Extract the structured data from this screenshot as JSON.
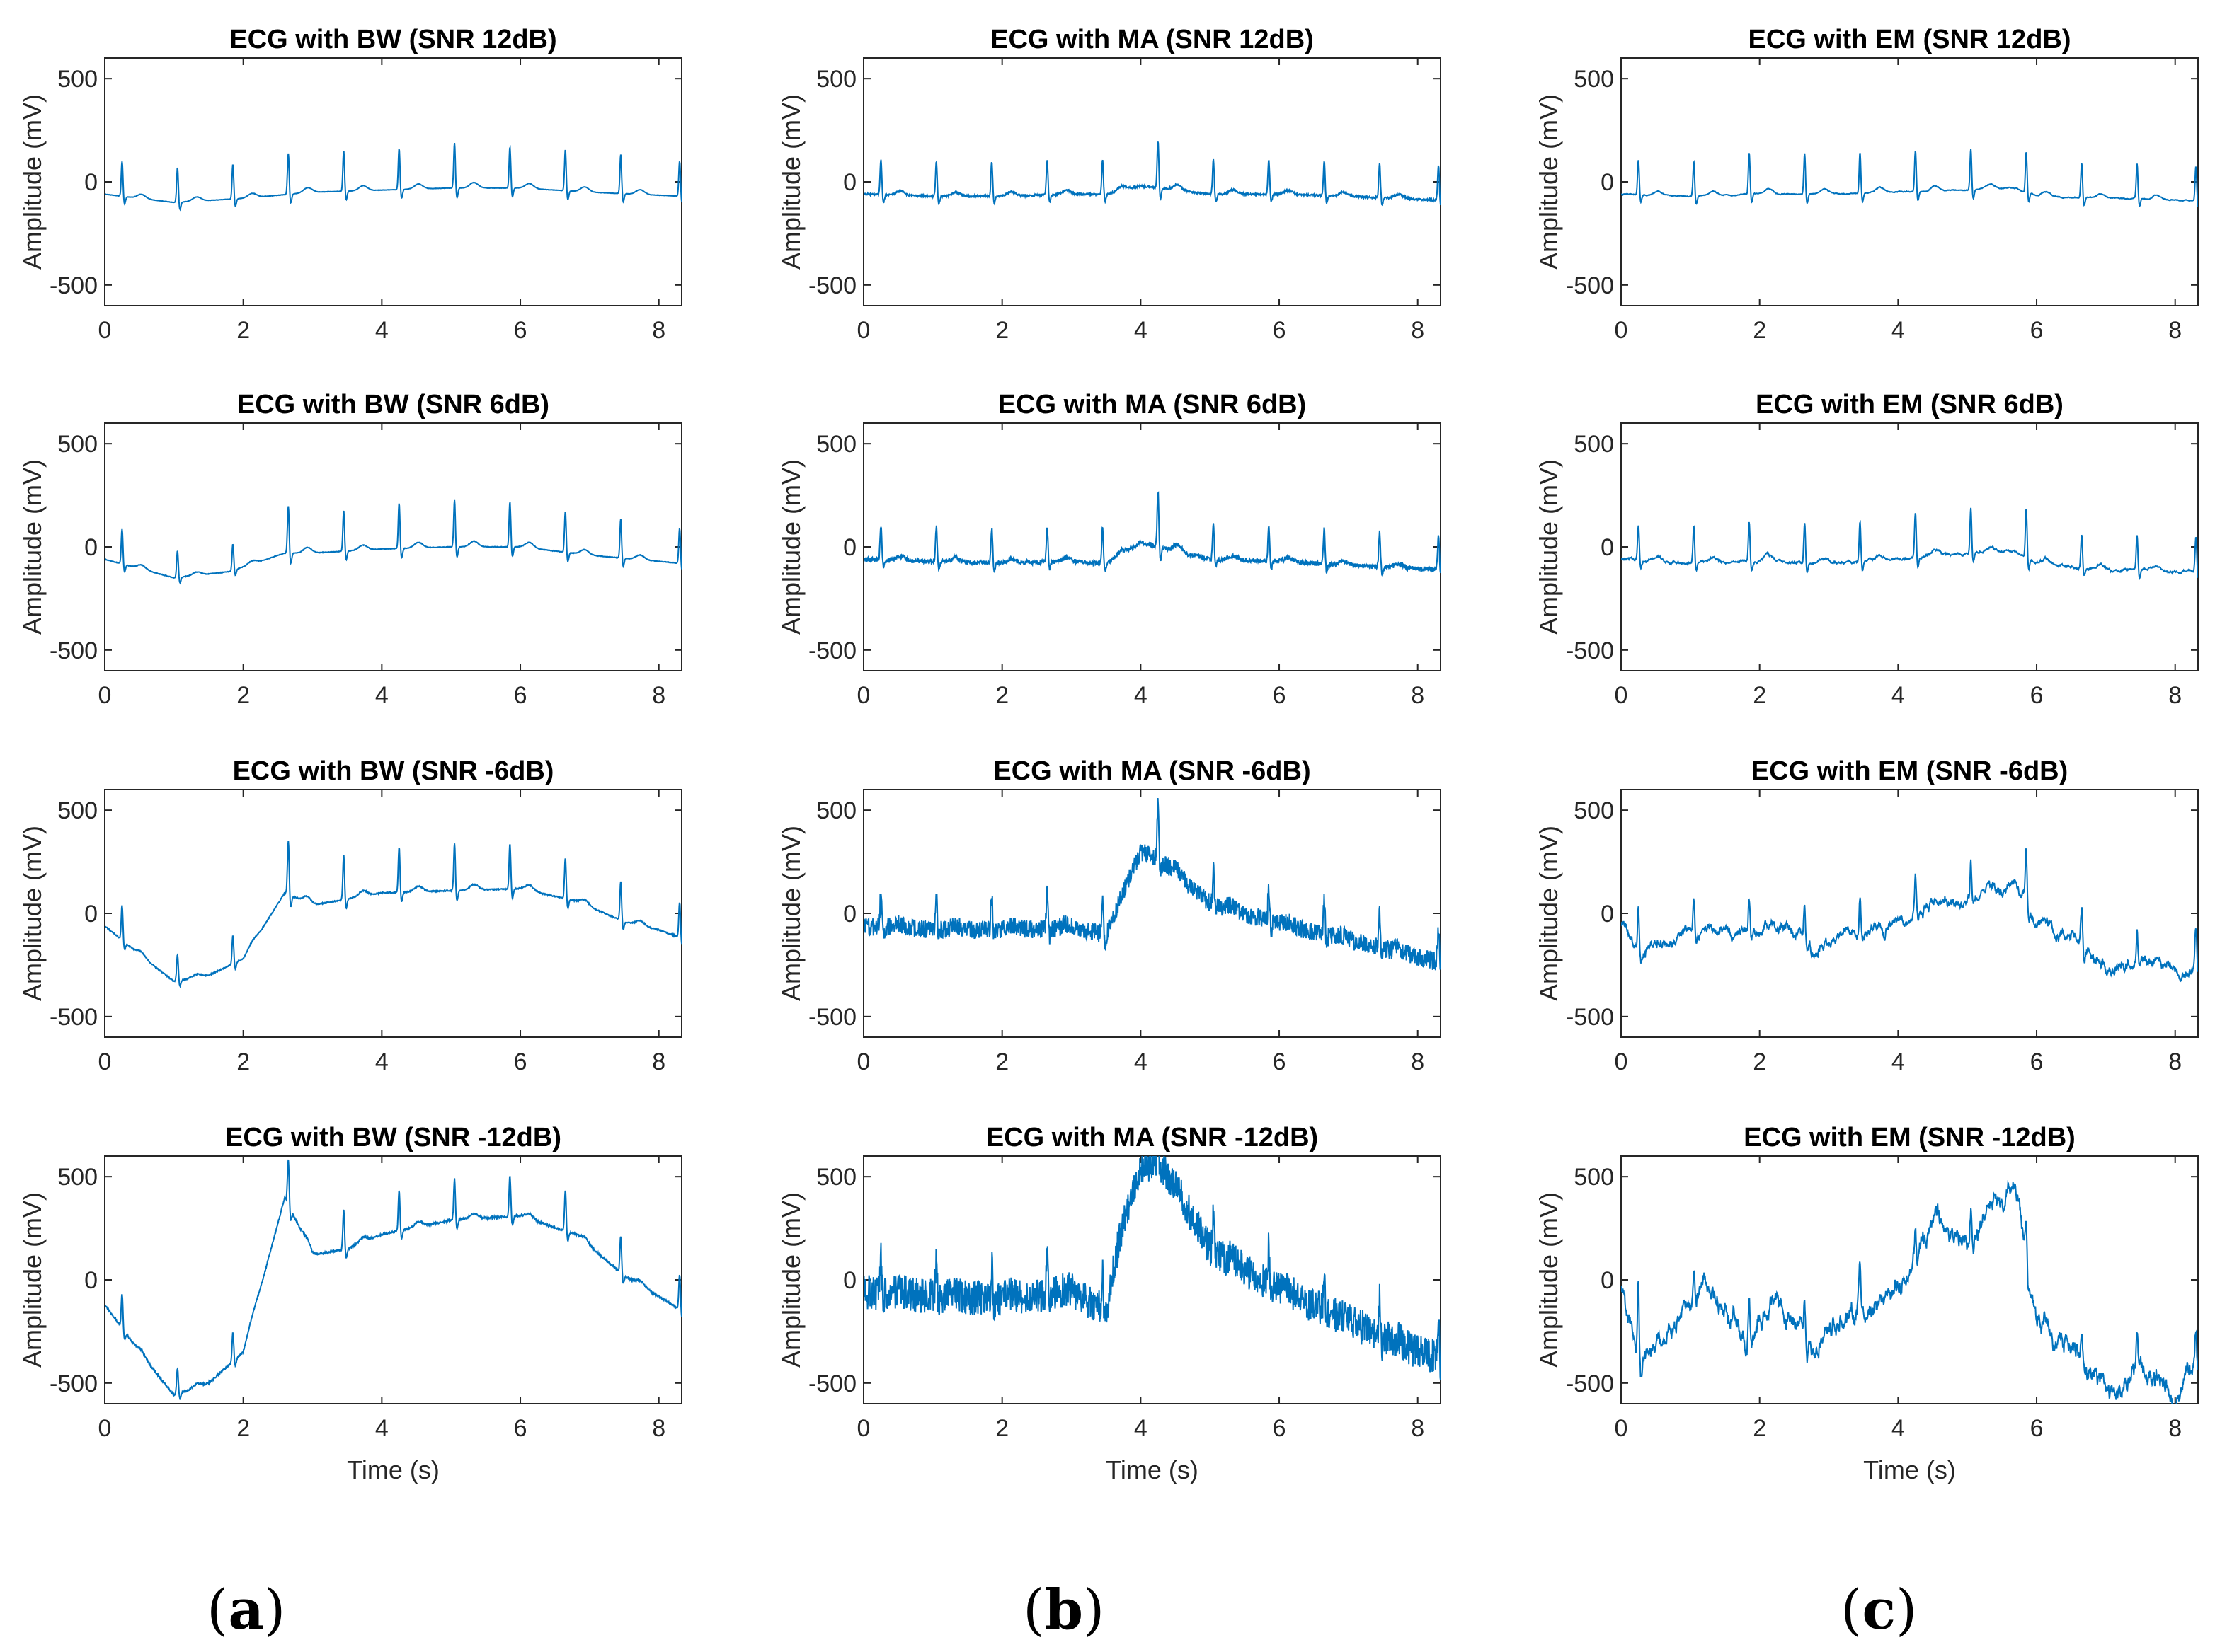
{
  "colors": {
    "line": "#0072bd",
    "axis": "#262626"
  },
  "panel_labels": [
    "a",
    "b",
    "c"
  ],
  "chart_data": [
    {
      "type": "line",
      "title": "ECG with BW (SNR 12dB)",
      "xlabel": "",
      "ylabel": "Amplitude (mV)",
      "xlim": [
        0,
        8.33
      ],
      "ylim": [
        -600,
        600
      ],
      "xticks": [
        "0",
        "2",
        "4",
        "6",
        "8"
      ],
      "yticks": [
        "500",
        "0",
        "-500"
      ],
      "noise": "bw",
      "level": 0.08,
      "baseline_points": [
        [
          0,
          -60
        ],
        [
          1,
          -100
        ],
        [
          2,
          -80
        ],
        [
          3,
          -50
        ],
        [
          4,
          -40
        ],
        [
          5,
          -30
        ],
        [
          6,
          -30
        ],
        [
          7,
          -50
        ],
        [
          8.33,
          -70
        ]
      ],
      "r_peak_times": [
        0.25,
        1.05,
        1.85,
        2.65,
        3.45,
        4.25,
        5.05,
        5.85,
        6.65,
        7.45,
        8.3
      ],
      "r_peak_heights": [
        170,
        170,
        170,
        200,
        200,
        200,
        220,
        200,
        200,
        190,
        170
      ]
    },
    {
      "type": "line",
      "title": "ECG with MA (SNR 12dB)",
      "xlabel": "",
      "ylabel": "Amplitude (mV)",
      "xlim": [
        0,
        8.33
      ],
      "ylim": [
        -600,
        600
      ],
      "xticks": [
        "0",
        "2",
        "4",
        "6",
        "8"
      ],
      "yticks": [
        "500",
        "0",
        "-500"
      ],
      "noise": "ma",
      "level": 0.1,
      "baseline_points": [
        [
          0,
          -60
        ],
        [
          1,
          -70
        ],
        [
          2,
          -70
        ],
        [
          3,
          -60
        ],
        [
          3.5,
          -60
        ],
        [
          4,
          -20
        ],
        [
          4.5,
          -40
        ],
        [
          5,
          -60
        ],
        [
          6,
          -60
        ],
        [
          7,
          -70
        ],
        [
          8.33,
          -90
        ]
      ],
      "r_peak_times": [
        0.25,
        1.05,
        1.85,
        2.65,
        3.45,
        4.25,
        5.05,
        5.85,
        6.65,
        7.45,
        8.3
      ],
      "r_peak_heights": [
        170,
        170,
        170,
        170,
        170,
        230,
        170,
        170,
        170,
        170,
        170
      ]
    },
    {
      "type": "line",
      "title": "ECG with EM (SNR 12dB)",
      "xlabel": "",
      "ylabel": "Amplitude (mV)",
      "xlim": [
        0,
        8.33
      ],
      "ylim": [
        -600,
        600
      ],
      "xticks": [
        "0",
        "2",
        "4",
        "6",
        "8"
      ],
      "yticks": [
        "500",
        "0",
        "-500"
      ],
      "noise": "em",
      "level": 0.1,
      "baseline_points": [
        [
          0,
          -60
        ],
        [
          1,
          -70
        ],
        [
          2,
          -60
        ],
        [
          3,
          -60
        ],
        [
          4,
          -50
        ],
        [
          5,
          -40
        ],
        [
          5.7,
          -30
        ],
        [
          6,
          -70
        ],
        [
          7,
          -80
        ],
        [
          8.33,
          -90
        ]
      ],
      "r_peak_times": [
        0.25,
        1.05,
        1.85,
        2.65,
        3.45,
        4.25,
        5.05,
        5.85,
        6.65,
        7.45,
        8.3
      ],
      "r_peak_heights": [
        170,
        170,
        200,
        200,
        200,
        200,
        200,
        200,
        170,
        170,
        170
      ]
    },
    {
      "type": "line",
      "title": "ECG with BW (SNR 6dB)",
      "xlabel": "",
      "ylabel": "Amplitude (mV)",
      "xlim": [
        0,
        8.33
      ],
      "ylim": [
        -600,
        600
      ],
      "xticks": [
        "0",
        "2",
        "4",
        "6",
        "8"
      ],
      "yticks": [
        "500",
        "0",
        "-500"
      ],
      "noise": "bw",
      "level": 0.15,
      "baseline_points": [
        [
          0,
          -60
        ],
        [
          1,
          -150
        ],
        [
          1.8,
          -120
        ],
        [
          2.6,
          -30
        ],
        [
          3,
          -30
        ],
        [
          4,
          -10
        ],
        [
          5,
          0
        ],
        [
          6,
          0
        ],
        [
          7,
          -40
        ],
        [
          8.33,
          -80
        ]
      ],
      "r_peak_times": [
        0.25,
        1.05,
        1.85,
        2.65,
        3.45,
        4.25,
        5.05,
        5.85,
        6.65,
        7.45,
        8.3
      ],
      "r_peak_heights": [
        170,
        130,
        130,
        230,
        200,
        220,
        230,
        220,
        200,
        190,
        170
      ]
    },
    {
      "type": "line",
      "title": "ECG with MA (SNR 6dB)",
      "xlabel": "",
      "ylabel": "Amplitude (mV)",
      "xlim": [
        0,
        8.33
      ],
      "ylim": [
        -600,
        600
      ],
      "xticks": [
        "0",
        "2",
        "4",
        "6",
        "8"
      ],
      "yticks": [
        "500",
        "0",
        "-500"
      ],
      "noise": "ma",
      "level": 0.25,
      "baseline_points": [
        [
          0,
          -60
        ],
        [
          1,
          -70
        ],
        [
          2,
          -80
        ],
        [
          3,
          -70
        ],
        [
          3.5,
          -80
        ],
        [
          4,
          20
        ],
        [
          4.5,
          -20
        ],
        [
          5,
          -60
        ],
        [
          6,
          -70
        ],
        [
          7,
          -90
        ],
        [
          8.33,
          -110
        ]
      ],
      "r_peak_times": [
        0.25,
        1.05,
        1.85,
        2.65,
        3.45,
        4.25,
        5.05,
        5.85,
        6.65,
        7.45,
        8.3
      ],
      "r_peak_heights": [
        170,
        170,
        170,
        170,
        170,
        270,
        170,
        170,
        170,
        170,
        170
      ]
    },
    {
      "type": "line",
      "title": "ECG with EM (SNR 6dB)",
      "xlabel": "",
      "ylabel": "Amplitude (mV)",
      "xlim": [
        0,
        8.33
      ],
      "ylim": [
        -600,
        600
      ],
      "xticks": [
        "0",
        "2",
        "4",
        "6",
        "8"
      ],
      "yticks": [
        "500",
        "0",
        "-500"
      ],
      "noise": "em",
      "level": 0.25,
      "baseline_points": [
        [
          0,
          -60
        ],
        [
          1,
          -80
        ],
        [
          2,
          -70
        ],
        [
          3,
          -80
        ],
        [
          4,
          -60
        ],
        [
          5,
          -30
        ],
        [
          5.7,
          -20
        ],
        [
          6,
          -80
        ],
        [
          7,
          -110
        ],
        [
          8.33,
          -120
        ]
      ],
      "r_peak_times": [
        0.25,
        1.05,
        1.85,
        2.65,
        3.45,
        4.25,
        5.05,
        5.85,
        6.65,
        7.45,
        8.3
      ],
      "r_peak_heights": [
        170,
        180,
        200,
        200,
        200,
        220,
        220,
        240,
        170,
        170,
        170
      ]
    },
    {
      "type": "line",
      "title": "ECG with BW (SNR -6dB)",
      "xlabel": "",
      "ylabel": "Amplitude (mV)",
      "xlim": [
        0,
        8.33
      ],
      "ylim": [
        -600,
        600
      ],
      "xticks": [
        "0",
        "2",
        "4",
        "6",
        "8"
      ],
      "yticks": [
        "500",
        "0",
        "-500"
      ],
      "noise": "bw",
      "level": 0.3,
      "baseline_points": [
        [
          0,
          -60
        ],
        [
          0.5,
          -200
        ],
        [
          1,
          -330
        ],
        [
          1.5,
          -300
        ],
        [
          2,
          -220
        ],
        [
          2.6,
          100
        ],
        [
          3,
          40
        ],
        [
          4,
          100
        ],
        [
          5,
          110
        ],
        [
          6,
          120
        ],
        [
          6.8,
          60
        ],
        [
          7.5,
          -40
        ],
        [
          8,
          -80
        ],
        [
          8.33,
          -120
        ]
      ],
      "r_peak_times": [
        0.25,
        1.05,
        1.85,
        2.65,
        3.45,
        4.25,
        5.05,
        5.85,
        6.65,
        7.45,
        8.3
      ],
      "r_peak_heights": [
        170,
        130,
        140,
        260,
        220,
        220,
        230,
        220,
        200,
        190,
        170
      ]
    },
    {
      "type": "line",
      "title": "ECG with MA (SNR -6dB)",
      "xlabel": "",
      "ylabel": "Amplitude (mV)",
      "xlim": [
        0,
        8.33
      ],
      "ylim": [
        -600,
        600
      ],
      "xticks": [
        "0",
        "2",
        "4",
        "6",
        "8"
      ],
      "yticks": [
        "500",
        "0",
        "-500"
      ],
      "noise": "ma",
      "level": 1.0,
      "baseline_points": [
        [
          0,
          -60
        ],
        [
          1,
          -80
        ],
        [
          2,
          -80
        ],
        [
          3,
          -70
        ],
        [
          3.5,
          -100
        ],
        [
          3.7,
          50
        ],
        [
          4,
          300
        ],
        [
          4.3,
          250
        ],
        [
          5,
          50
        ],
        [
          6,
          -50
        ],
        [
          7,
          -130
        ],
        [
          8,
          -210
        ],
        [
          8.33,
          -240
        ]
      ],
      "r_peak_times": [
        0.25,
        1.05,
        1.85,
        2.65,
        3.45,
        4.25,
        5.05,
        5.85,
        6.65,
        7.45,
        8.3
      ],
      "r_peak_heights": [
        170,
        170,
        170,
        170,
        170,
        270,
        170,
        170,
        170,
        170,
        170
      ]
    },
    {
      "type": "line",
      "title": "ECG with EM (SNR -6dB)",
      "xlabel": "",
      "ylabel": "Amplitude (mV)",
      "xlim": [
        0,
        8.33
      ],
      "ylim": [
        -600,
        600
      ],
      "xticks": [
        "0",
        "2",
        "4",
        "6",
        "8"
      ],
      "yticks": [
        "500",
        "0",
        "-500"
      ],
      "noise": "em",
      "level": 1.0,
      "baseline_points": [
        [
          0,
          -40
        ],
        [
          0.3,
          -200
        ],
        [
          0.8,
          -120
        ],
        [
          1.2,
          -80
        ],
        [
          1.8,
          -100
        ],
        [
          2.4,
          -50
        ],
        [
          2.8,
          -200
        ],
        [
          3.3,
          -80
        ],
        [
          3.8,
          -90
        ],
        [
          4.5,
          50
        ],
        [
          5,
          60
        ],
        [
          5.5,
          120
        ],
        [
          5.7,
          150
        ],
        [
          6,
          -40
        ],
        [
          6.5,
          -120
        ],
        [
          7,
          -270
        ],
        [
          7.5,
          -220
        ],
        [
          8,
          -280
        ],
        [
          8.33,
          -250
        ]
      ],
      "r_peak_times": [
        0.25,
        1.05,
        1.85,
        2.65,
        3.45,
        4.25,
        5.05,
        5.85,
        6.65,
        7.45,
        8.3
      ],
      "r_peak_heights": [
        200,
        170,
        170,
        170,
        170,
        170,
        170,
        220,
        170,
        170,
        170
      ]
    },
    {
      "type": "line",
      "title": "ECG with BW (SNR -12dB)",
      "xlabel": "Time (s)",
      "ylabel": "Amplitude (mV)",
      "xlim": [
        0,
        8.33
      ],
      "ylim": [
        -600,
        600
      ],
      "xticks": [
        "0",
        "2",
        "4",
        "6",
        "8"
      ],
      "yticks": [
        "500",
        "0",
        "-500"
      ],
      "noise": "bw",
      "level": 0.5,
      "baseline_points": [
        [
          0,
          -120
        ],
        [
          0.5,
          -350
        ],
        [
          1,
          -560
        ],
        [
          1.5,
          -500
        ],
        [
          2,
          -350
        ],
        [
          2.6,
          400
        ],
        [
          3,
          120
        ],
        [
          3.5,
          150
        ],
        [
          4,
          220
        ],
        [
          5,
          290
        ],
        [
          6,
          310
        ],
        [
          6.8,
          220
        ],
        [
          7.5,
          20
        ],
        [
          8,
          -80
        ],
        [
          8.33,
          -150
        ]
      ],
      "r_peak_times": [
        0.25,
        1.05,
        1.85,
        2.65,
        3.45,
        4.25,
        5.05,
        5.85,
        6.65,
        7.45,
        8.3
      ],
      "r_peak_heights": [
        170,
        130,
        140,
        220,
        200,
        200,
        200,
        200,
        200,
        180,
        170
      ]
    },
    {
      "type": "line",
      "title": "ECG with MA (SNR -12dB)",
      "xlabel": "Time (s)",
      "ylabel": "Amplitude (mV)",
      "xlim": [
        0,
        8.33
      ],
      "ylim": [
        -600,
        600
      ],
      "xticks": [
        "0",
        "2",
        "4",
        "6",
        "8"
      ],
      "yticks": [
        "500",
        "0",
        "-500"
      ],
      "noise": "ma",
      "level": 1.9,
      "baseline_points": [
        [
          0,
          -60
        ],
        [
          1,
          -80
        ],
        [
          2,
          -90
        ],
        [
          3,
          -60
        ],
        [
          3.5,
          -150
        ],
        [
          3.7,
          200
        ],
        [
          4,
          560
        ],
        [
          4.3,
          560
        ],
        [
          5,
          150
        ],
        [
          6,
          -50
        ],
        [
          7,
          -200
        ],
        [
          8,
          -350
        ],
        [
          8.33,
          -380
        ]
      ],
      "r_peak_times": [
        0.25,
        1.05,
        1.85,
        2.65,
        3.45,
        4.25,
        5.05,
        5.85,
        6.65,
        7.45,
        8.3
      ],
      "r_peak_heights": [
        170,
        170,
        170,
        170,
        170,
        200,
        170,
        170,
        170,
        170,
        170
      ]
    },
    {
      "type": "line",
      "title": "ECG with EM (SNR -12dB)",
      "xlabel": "Time (s)",
      "ylabel": "Amplitude (mV)",
      "xlim": [
        0,
        8.33
      ],
      "ylim": [
        -600,
        600
      ],
      "xticks": [
        "0",
        "2",
        "4",
        "6",
        "8"
      ],
      "yticks": [
        "500",
        "0",
        "-500"
      ],
      "noise": "em",
      "level": 1.9,
      "baseline_points": [
        [
          0,
          -40
        ],
        [
          0.3,
          -400
        ],
        [
          0.8,
          -200
        ],
        [
          1.2,
          -20
        ],
        [
          1.8,
          -250
        ],
        [
          2.3,
          -80
        ],
        [
          2.8,
          -360
        ],
        [
          3.3,
          -130
        ],
        [
          3.8,
          -150
        ],
        [
          4.5,
          250
        ],
        [
          5,
          200
        ],
        [
          5.5,
          400
        ],
        [
          5.7,
          450
        ],
        [
          6,
          -200
        ],
        [
          6.5,
          -300
        ],
        [
          7,
          -560
        ],
        [
          7.5,
          -420
        ],
        [
          8,
          -560
        ],
        [
          8.33,
          -420
        ]
      ],
      "r_peak_times": [
        0.25,
        1.05,
        1.85,
        2.65,
        3.45,
        4.25,
        5.05,
        5.85,
        6.65,
        7.45,
        8.3
      ],
      "r_peak_heights": [
        350,
        170,
        170,
        170,
        170,
        170,
        170,
        200,
        170,
        170,
        170
      ]
    }
  ]
}
